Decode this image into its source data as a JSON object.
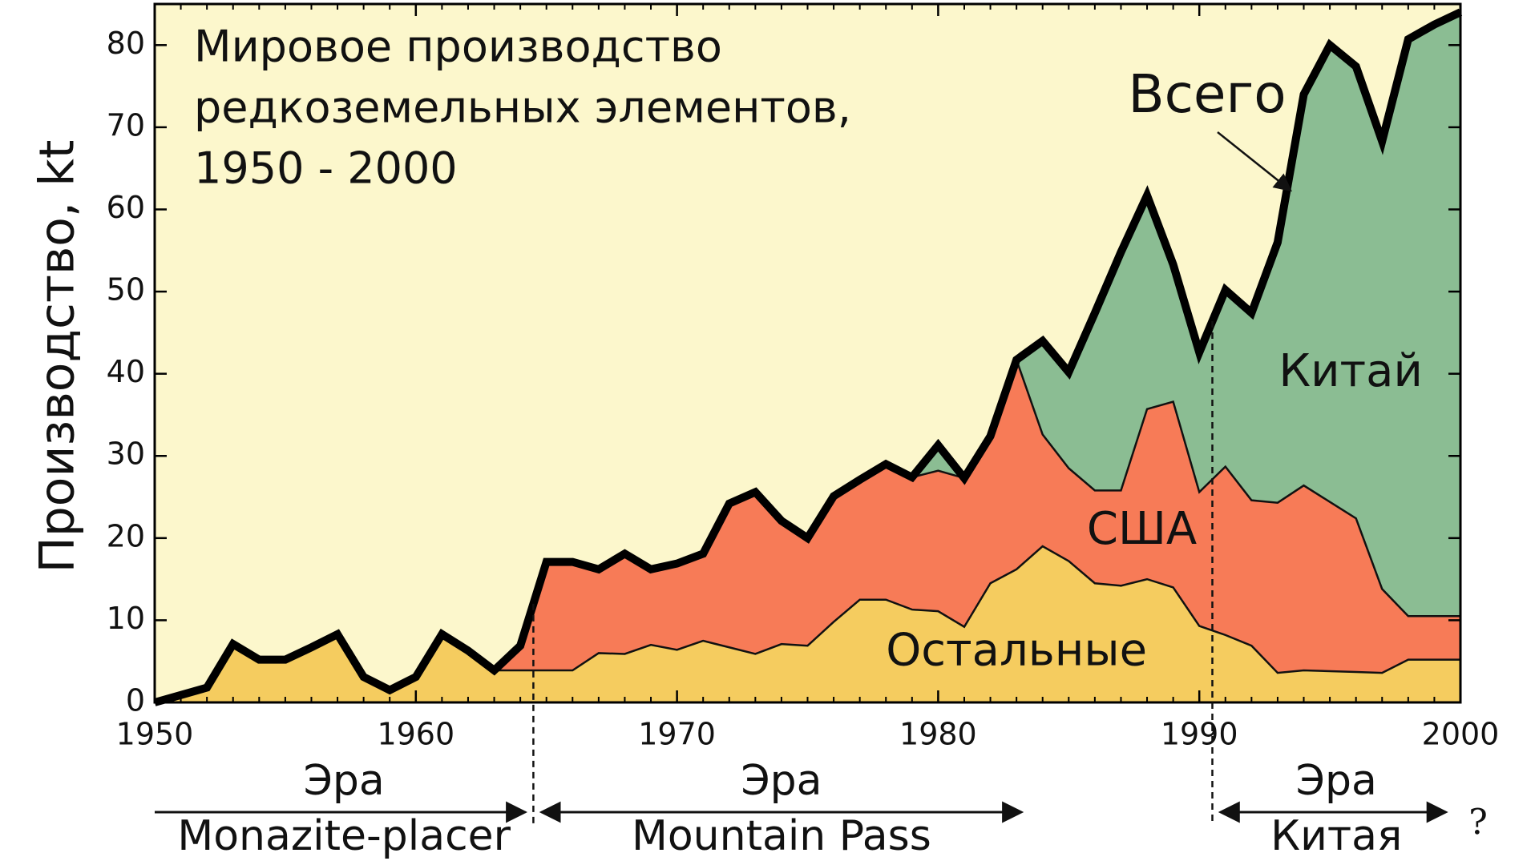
{
  "chart_data": {
    "type": "stacked_area",
    "title": [
      "Мировое производство",
      "редкоземельных элементов,",
      "1950 - 2000"
    ],
    "y_label": "Производство, kt",
    "x": [
      1950,
      1951,
      1952,
      1953,
      1954,
      1955,
      1956,
      1957,
      1958,
      1959,
      1960,
      1961,
      1962,
      1963,
      1964,
      1965,
      1966,
      1967,
      1968,
      1969,
      1970,
      1971,
      1972,
      1973,
      1974,
      1975,
      1976,
      1977,
      1978,
      1979,
      1980,
      1981,
      1982,
      1983,
      1984,
      1985,
      1986,
      1987,
      1988,
      1989,
      1990,
      1991,
      1992,
      1993,
      1994,
      1995,
      1996,
      1997,
      1998,
      1999,
      2000
    ],
    "series": [
      {
        "name": "Остальные",
        "color": "#f5cc5f",
        "values": [
          0,
          0.9,
          1.8,
          7.1,
          5.2,
          5.2,
          6.7,
          8.3,
          3.1,
          1.5,
          3.1,
          8.3,
          6.3,
          3.9,
          3.9,
          3.9,
          3.9,
          6.0,
          5.9,
          7.0,
          6.4,
          7.5,
          6.7,
          5.9,
          7.1,
          6.9,
          9.8,
          12.5,
          12.5,
          11.3,
          11.1,
          9.2,
          14.5,
          16.2,
          19.0,
          17.2,
          14.5,
          14.2,
          15.0,
          14.0,
          9.3,
          8.2,
          6.9,
          3.6,
          3.9,
          3.8,
          3.7,
          3.6,
          5.2,
          5.2,
          5.2
        ]
      },
      {
        "name": "США",
        "color": "#f77b57",
        "values": [
          0,
          0,
          0,
          0,
          0,
          0,
          0,
          0,
          0,
          0,
          0,
          0,
          0,
          0,
          3.0,
          13.2,
          13.2,
          10.2,
          12.2,
          9.2,
          10.5,
          10.6,
          17.5,
          19.7,
          15.0,
          13.1,
          15.3,
          14.6,
          16.5,
          16.1,
          17.1,
          18.1,
          17.9,
          25.5,
          13.6,
          11.3,
          11.3,
          11.6,
          20.7,
          22.6,
          16.3,
          20.5,
          17.7,
          20.7,
          22.5,
          20.6,
          18.7,
          10.2,
          5.3,
          5.3,
          5.3
        ]
      },
      {
        "name": "Китай",
        "color": "#8bbd93",
        "values": [
          0,
          0,
          0,
          0,
          0,
          0,
          0,
          0,
          0,
          0,
          0,
          0,
          0,
          0,
          0,
          0,
          0,
          0,
          0,
          0,
          0,
          0,
          0,
          0,
          0,
          0,
          0,
          0,
          0,
          0,
          3.1,
          0,
          0,
          0,
          11.4,
          11.7,
          21.6,
          29.0,
          26.0,
          16.7,
          17.0,
          21.5,
          22.8,
          31.7,
          47.6,
          55.6,
          55.0,
          54.5,
          70.2,
          72.0,
          73.5
        ]
      }
    ],
    "total_label": "Всего",
    "eras": [
      {
        "title": "Эра",
        "name": "Monazite-placer",
        "start": 1950,
        "end": 1964.5
      },
      {
        "title": "Эра",
        "name": "Mountain Pass",
        "start": 1964.5,
        "end": 1983.5
      },
      {
        "title": "Эра",
        "name": "Китая",
        "start": 1990.5,
        "end": 2000
      }
    ],
    "era_note": "?",
    "xlim": [
      1950,
      2000
    ],
    "xticks": [
      1950,
      1960,
      1970,
      1980,
      1990,
      2000
    ],
    "ylim": [
      0,
      85
    ],
    "yticks": [
      0,
      10,
      20,
      30,
      40,
      50,
      60,
      70,
      80
    ],
    "background": "#fcf7cc"
  }
}
